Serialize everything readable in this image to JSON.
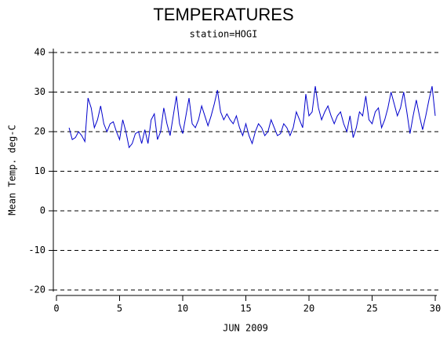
{
  "chart_data": {
    "type": "line",
    "title": "TEMPERATURES",
    "subtitle": "station=HOGI",
    "x_label": "JUN 2009",
    "y_label": "Mean Temp. deg-C",
    "xlim": [
      0,
      30
    ],
    "xticks": [
      0,
      5,
      10,
      15,
      20,
      25,
      30
    ],
    "ylim": [
      -20,
      40
    ],
    "yticks": [
      -20,
      -10,
      0,
      10,
      20,
      30,
      40
    ],
    "grid": true,
    "x": [
      1,
      1.25,
      1.5,
      1.75,
      2,
      2.25,
      2.5,
      2.75,
      3,
      3.25,
      3.5,
      3.75,
      4,
      4.25,
      4.5,
      4.75,
      5,
      5.25,
      5.5,
      5.75,
      6,
      6.25,
      6.5,
      6.75,
      7,
      7.25,
      7.5,
      7.75,
      8,
      8.25,
      8.5,
      8.75,
      9,
      9.25,
      9.5,
      9.75,
      10,
      10.25,
      10.5,
      10.75,
      11,
      11.25,
      11.5,
      11.75,
      12,
      12.25,
      12.5,
      12.75,
      13,
      13.25,
      13.5,
      13.75,
      14,
      14.25,
      14.5,
      14.75,
      15,
      15.25,
      15.5,
      15.75,
      16,
      16.25,
      16.5,
      16.75,
      17,
      17.25,
      17.5,
      17.75,
      18,
      18.25,
      18.5,
      18.75,
      19,
      19.25,
      19.5,
      19.75,
      20,
      20.25,
      20.5,
      20.75,
      21,
      21.25,
      21.5,
      21.75,
      22,
      22.25,
      22.5,
      22.75,
      23,
      23.25,
      23.5,
      23.75,
      24,
      24.25,
      24.5,
      24.75,
      25,
      25.25,
      25.5,
      25.75,
      26,
      26.25,
      26.5,
      26.75,
      27,
      27.25,
      27.5,
      27.75,
      28,
      28.25,
      28.5,
      28.75,
      29,
      29.25,
      29.5,
      29.75,
      30
    ],
    "series": [
      {
        "name": "Mean Temp",
        "color": "#0000cc",
        "values": [
          21,
          18,
          18.5,
          20,
          19,
          17.5,
          28.5,
          26,
          21,
          23,
          26.5,
          22,
          20,
          22,
          22.5,
          20,
          18,
          23,
          20,
          16,
          17,
          19.5,
          20,
          17,
          20.5,
          17,
          23,
          24.5,
          18,
          20,
          26,
          22,
          19,
          24,
          29,
          22,
          19.5,
          24,
          28.5,
          22,
          21,
          23,
          26.5,
          24,
          21.5,
          24,
          27,
          30.5,
          25,
          23,
          24.5,
          23,
          22,
          24,
          21,
          19,
          22,
          19,
          17,
          20,
          22,
          21,
          19,
          20,
          23,
          21,
          19,
          19.5,
          22,
          21,
          19,
          21,
          25,
          23,
          21,
          29.5,
          24,
          25,
          31.5,
          26,
          23,
          25,
          26.5,
          24,
          22,
          24,
          25,
          22,
          20,
          24,
          18.5,
          21,
          25,
          24,
          29,
          23,
          22,
          25,
          26,
          21,
          23,
          26,
          30,
          27,
          24,
          26,
          30,
          25,
          19.5,
          24,
          28,
          24,
          20.5,
          24,
          28,
          31.5,
          24
        ]
      }
    ]
  }
}
